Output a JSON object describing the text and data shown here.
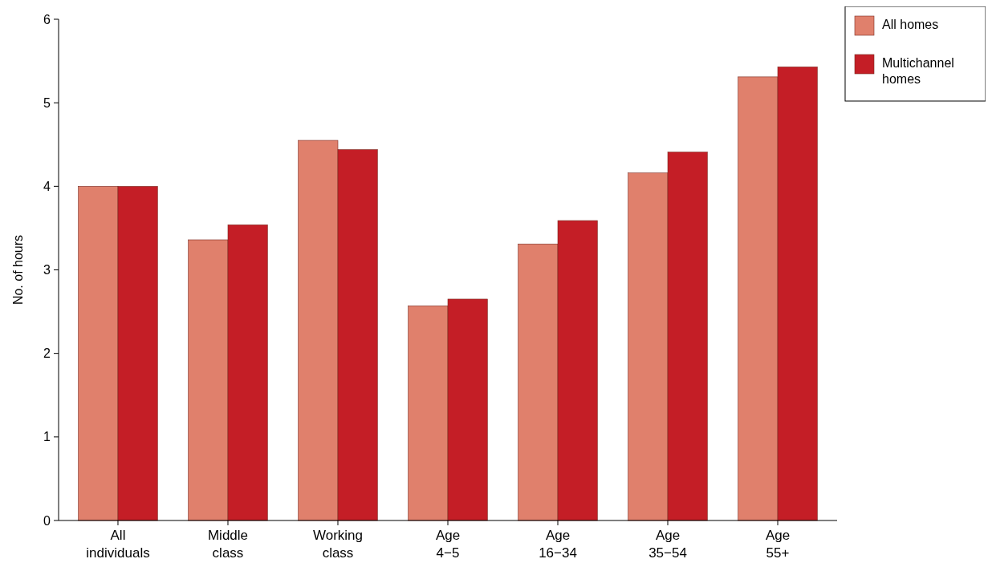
{
  "chart_data": {
    "type": "bar",
    "ylabel": "No. of hours",
    "categories": [
      "All individuals",
      "Middle class",
      "Working class",
      "Age 4−5",
      "Age 16−34",
      "Age 35−54",
      "Age 55+"
    ],
    "series": [
      {
        "name": "All homes",
        "color": "#e0806c",
        "values": [
          4.0,
          3.36,
          4.55,
          2.57,
          3.31,
          4.16,
          5.31
        ]
      },
      {
        "name": "Multichannel homes",
        "color": "#c41e26",
        "values": [
          4.0,
          3.54,
          4.44,
          2.65,
          3.59,
          4.41,
          5.43
        ]
      }
    ],
    "ylim": [
      0,
      6
    ],
    "yticks": [
      0,
      1,
      2,
      3,
      4,
      5,
      6
    ],
    "legend": "top right"
  }
}
